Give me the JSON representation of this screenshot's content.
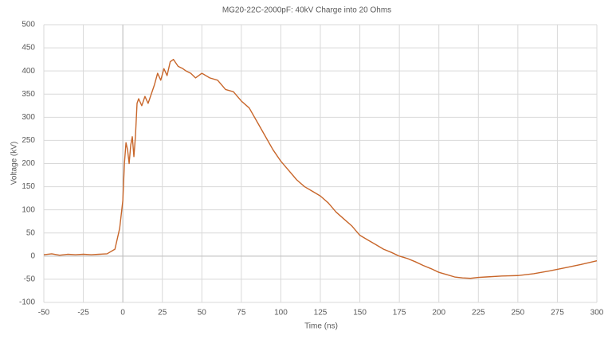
{
  "chart_data": {
    "type": "line",
    "title": "MG20-22C-2000pF: 40kV Charge into 20 Ohms",
    "x_label": "Time (ns)",
    "y_label": "Voltage (kV)",
    "x": [
      -50,
      -45,
      -40,
      -35,
      -30,
      -25,
      -20,
      -15,
      -10,
      -5,
      -2,
      0,
      1,
      2,
      3,
      4,
      5,
      6,
      7,
      8,
      9,
      10,
      12,
      14,
      16,
      18,
      20,
      22,
      24,
      26,
      28,
      30,
      32,
      35,
      38,
      40,
      43,
      46,
      50,
      55,
      60,
      65,
      70,
      75,
      80,
      85,
      90,
      95,
      100,
      105,
      110,
      115,
      120,
      125,
      130,
      135,
      140,
      145,
      150,
      155,
      160,
      165,
      170,
      175,
      180,
      185,
      190,
      195,
      200,
      205,
      210,
      215,
      220,
      225,
      230,
      240,
      250,
      260,
      270,
      280,
      290,
      300
    ],
    "series": [
      {
        "name": "Voltage",
        "color": "#c8662a",
        "values": [
          3,
          5,
          2,
          4,
          3,
          4,
          3,
          4,
          5,
          15,
          60,
          120,
          200,
          245,
          230,
          200,
          240,
          258,
          215,
          260,
          330,
          340,
          325,
          345,
          330,
          350,
          370,
          395,
          380,
          405,
          390,
          420,
          425,
          410,
          405,
          400,
          395,
          385,
          395,
          385,
          380,
          360,
          355,
          335,
          320,
          290,
          260,
          230,
          205,
          185,
          165,
          150,
          140,
          130,
          115,
          95,
          80,
          65,
          45,
          35,
          25,
          15,
          8,
          0,
          -5,
          -12,
          -20,
          -27,
          -35,
          -40,
          -45,
          -47,
          -48,
          -46,
          -45,
          -43,
          -42,
          -38,
          -32,
          -25,
          -18,
          -10
        ]
      }
    ],
    "xlim": [
      -50,
      300
    ],
    "xticks": [
      -50,
      -25,
      0,
      25,
      50,
      75,
      100,
      125,
      150,
      175,
      200,
      225,
      250,
      275,
      300
    ],
    "ylim": [
      -100,
      500
    ],
    "yticks": [
      -100,
      -50,
      0,
      50,
      100,
      150,
      200,
      250,
      300,
      350,
      400,
      450,
      500
    ],
    "grid": true
  }
}
